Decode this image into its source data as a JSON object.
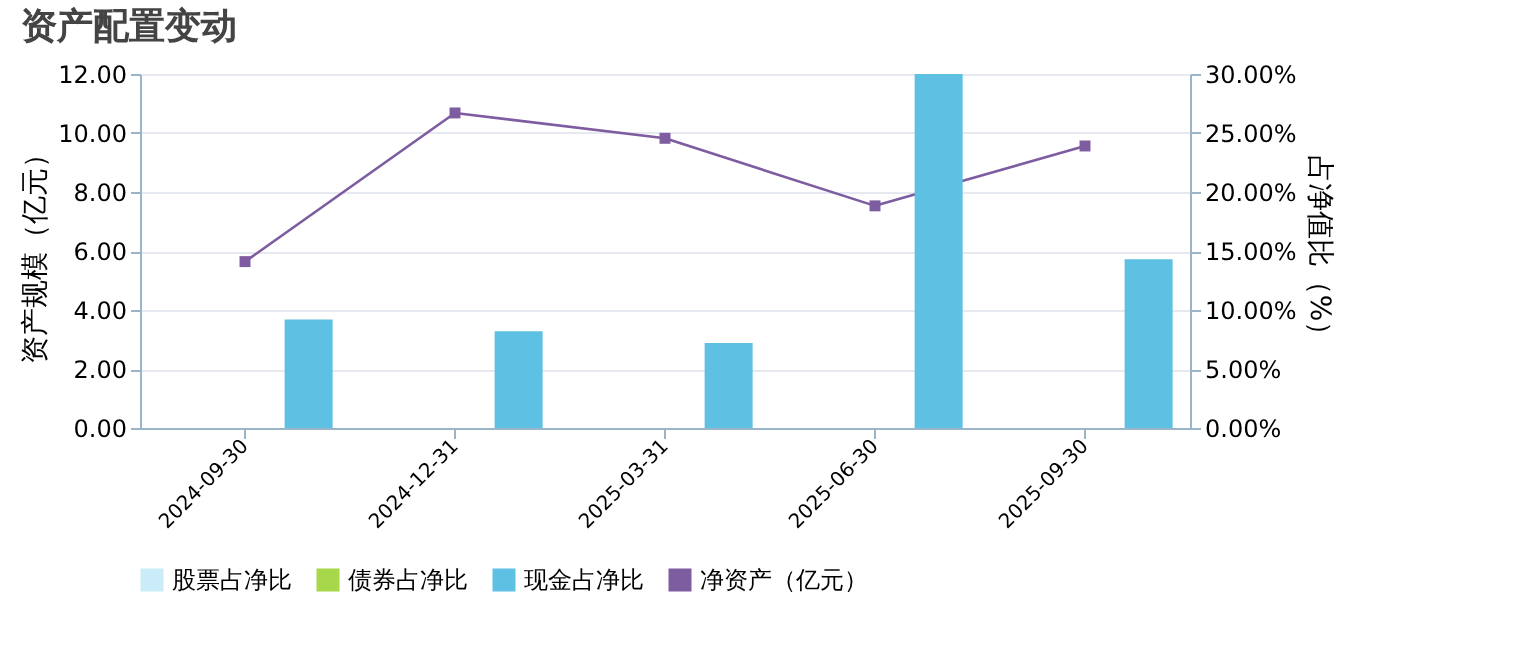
{
  "chart_data": {
    "type": "bar",
    "title": "资产配置变动",
    "categories": [
      "2024-09-30",
      "2024-12-31",
      "2025-03-31",
      "2025-06-30",
      "2025-09-30"
    ],
    "series": [
      {
        "name": "股票占净比",
        "color": "#c9ecf8",
        "axis": "y2",
        "values": [
          0,
          0,
          0,
          0,
          0
        ]
      },
      {
        "name": "债券占净比",
        "color": "#a6d84a",
        "axis": "y2",
        "values": [
          0,
          0,
          0,
          0,
          0
        ]
      },
      {
        "name": "现金占净比",
        "color": "#5ec0e2",
        "axis": "y2",
        "values": [
          9.2,
          8.2,
          7.2,
          30,
          14.3
        ]
      },
      {
        "name": "净资产（亿元）",
        "type": "line",
        "color": "#7e5ca0",
        "marker": "square",
        "line_style": "solid",
        "values": [
          5.64,
          10.68,
          9.82,
          7.53,
          9.56
        ]
      }
    ],
    "ylabel": "资产规模（亿元）",
    "y2label": "占净值比（%）",
    "ylim": [
      0,
      12
    ],
    "yticks": [
      {
        "value": 0,
        "label": "0.00"
      },
      {
        "value": 2,
        "label": "2.00"
      },
      {
        "value": 4,
        "label": "4.00"
      },
      {
        "value": 6,
        "label": "6.00"
      },
      {
        "value": 8,
        "label": "8.00"
      },
      {
        "value": 10,
        "label": "10.00"
      },
      {
        "value": 12,
        "label": "12.00"
      }
    ],
    "y2lim": [
      0,
      30
    ],
    "y2ticks": [
      {
        "value": 0,
        "label": "0.00%"
      },
      {
        "value": 5,
        "label": "5.00%"
      },
      {
        "value": 10,
        "label": "10.00%"
      },
      {
        "value": 15,
        "label": "15.00%"
      },
      {
        "value": 20,
        "label": "20.00%"
      },
      {
        "value": 25,
        "label": "25.00%"
      },
      {
        "value": 30,
        "label": "30.00%"
      }
    ],
    "grid": "y",
    "legend": "bottom"
  }
}
